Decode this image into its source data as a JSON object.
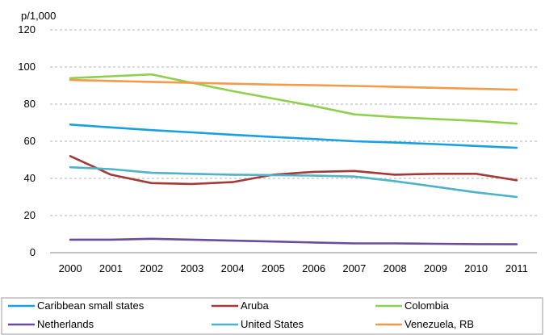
{
  "chart_data": {
    "type": "line",
    "y_unit": "p/1,000",
    "x": [
      "2000",
      "2001",
      "2002",
      "2003",
      "2004",
      "2005",
      "2006",
      "2007",
      "2008",
      "2009",
      "2010",
      "2011"
    ],
    "ylim": [
      0,
      120
    ],
    "y_ticks": [
      "0",
      "20",
      "40",
      "60",
      "80",
      "100",
      "120"
    ],
    "grid": "horizontal dashed",
    "legend_position": "bottom",
    "series": [
      {
        "name": "Caribbean small states",
        "color": "#1aa0e0",
        "values": [
          69,
          67.5,
          66,
          64.8,
          63.5,
          62.3,
          61.2,
          60,
          59.3,
          58.5,
          57.5,
          56.5
        ]
      },
      {
        "name": "Aruba",
        "color": "#a23a3a",
        "values": [
          52,
          42,
          37.5,
          37,
          38,
          42,
          43.5,
          44,
          42,
          42.5,
          42.5,
          39
        ]
      },
      {
        "name": "Colombia",
        "color": "#8fd14f",
        "values": [
          94,
          95,
          96,
          91.5,
          87,
          83,
          79,
          74.5,
          73,
          72,
          71,
          69.5
        ]
      },
      {
        "name": "Netherlands",
        "color": "#6a4c9c",
        "values": [
          7,
          7,
          7.5,
          7,
          6.5,
          6,
          5.5,
          5,
          5,
          4.8,
          4.6,
          4.5
        ]
      },
      {
        "name": "United States",
        "color": "#4fb3c8",
        "values": [
          46,
          45,
          43,
          42.5,
          42,
          41.8,
          41.5,
          41,
          38.5,
          35.5,
          32.5,
          30
        ]
      },
      {
        "name": "Venezuela, RB",
        "color": "#f39a4b",
        "values": [
          93,
          92.5,
          92,
          91.5,
          91,
          90.5,
          90.2,
          89.8,
          89.3,
          88.8,
          88.3,
          87.8
        ]
      }
    ]
  }
}
